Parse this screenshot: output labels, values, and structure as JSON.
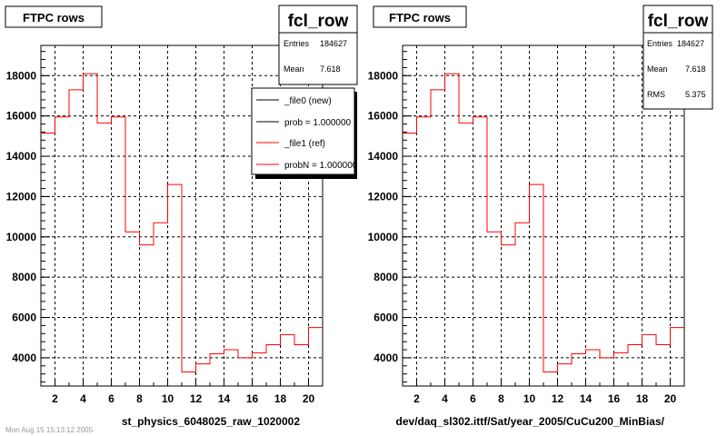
{
  "stamp": "Mon Aug 15 15:13:12 2005",
  "chart_data": [
    {
      "type": "histogram",
      "title": "FTPC rows",
      "stats": {
        "name": "fcl_row",
        "entries_label": "Entries",
        "entries": "184627",
        "mean_label": "Mean",
        "mean": "7.618"
      },
      "xlabel": "st_physics_6048025_raw_1020002",
      "xlim": [
        1,
        21
      ],
      "ylim": [
        2600,
        19500
      ],
      "x_ticks": [
        "2",
        "4",
        "6",
        "8",
        "10",
        "12",
        "14",
        "16",
        "18",
        "20"
      ],
      "y_ticks": [
        "4000",
        "6000",
        "8000",
        "10000",
        "12000",
        "14000",
        "16000",
        "18000"
      ],
      "bin_edges": [
        1,
        2,
        3,
        4,
        5,
        6,
        7,
        8,
        9,
        10,
        11,
        12,
        13,
        14,
        15,
        16,
        17,
        18,
        19,
        20,
        21
      ],
      "values": [
        15150,
        15950,
        17300,
        18100,
        15650,
        15950,
        10250,
        9600,
        10700,
        12600,
        3300,
        3700,
        4200,
        4400,
        4000,
        4250,
        4650,
        5150,
        4650,
        5500
      ],
      "line_color": "#ff0000",
      "grid": true,
      "legend": {
        "placement": "top-right",
        "entries": [
          {
            "label": "_file0 (new)",
            "color": "#000000"
          },
          {
            "label": "prob = 1.000000",
            "color": "#000000"
          },
          {
            "label": "_file1 (ref)",
            "color": "#ff0000"
          },
          {
            "label": "probN = 1.000000",
            "color": "#ff0000"
          }
        ]
      }
    },
    {
      "type": "histogram",
      "title": "FTPC rows",
      "stats": {
        "name": "fcl_row",
        "entries_label": "Entries",
        "entries": "184627",
        "mean_label": "Mean",
        "mean": "7.618",
        "rms_label": "RMS",
        "rms": "5.375"
      },
      "xlabel": "dev/daq_sl302.ittf/Sat/year_2005/CuCu200_MinBias/",
      "xlim": [
        1,
        21
      ],
      "ylim": [
        2600,
        19500
      ],
      "x_ticks": [
        "2",
        "4",
        "6",
        "8",
        "10",
        "12",
        "14",
        "16",
        "18",
        "20"
      ],
      "y_ticks": [
        "4000",
        "6000",
        "8000",
        "10000",
        "12000",
        "14000",
        "16000",
        "18000"
      ],
      "bin_edges": [
        1,
        2,
        3,
        4,
        5,
        6,
        7,
        8,
        9,
        10,
        11,
        12,
        13,
        14,
        15,
        16,
        17,
        18,
        19,
        20,
        21
      ],
      "values": [
        15150,
        15950,
        17300,
        18100,
        15650,
        15950,
        10250,
        9600,
        10700,
        12600,
        3300,
        3700,
        4200,
        4400,
        4000,
        4250,
        4650,
        5150,
        4650,
        5500
      ],
      "line_color": "#ff0000",
      "grid": true
    }
  ]
}
